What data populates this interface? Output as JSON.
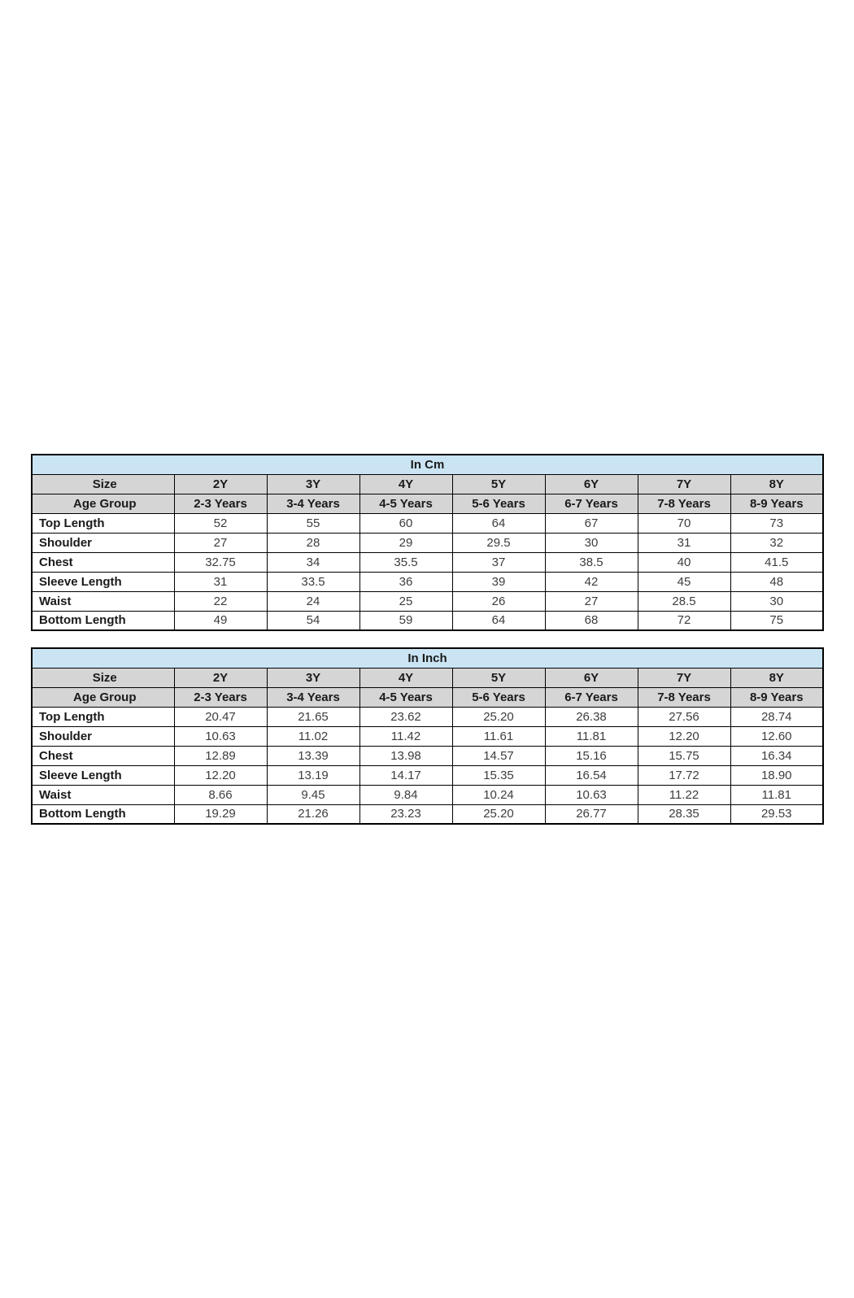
{
  "colors": {
    "title_bg": "#cae4f3",
    "header_bg": "#d5d5d5",
    "border": "#000000",
    "page_bg": "#ffffff"
  },
  "chart_data": [
    {
      "type": "table",
      "title": "In Cm",
      "size_label": "Size",
      "age_label": "Age Group",
      "sizes": [
        "2Y",
        "3Y",
        "4Y",
        "5Y",
        "6Y",
        "7Y",
        "8Y"
      ],
      "age_groups": [
        "2-3 Years",
        "3-4 Years",
        "4-5 Years",
        "5-6 Years",
        "6-7 Years",
        "7-8 Years",
        "8-9 Years"
      ],
      "rows": [
        {
          "label": "Top Length",
          "values": [
            "52",
            "55",
            "60",
            "64",
            "67",
            "70",
            "73"
          ]
        },
        {
          "label": "Shoulder",
          "values": [
            "27",
            "28",
            "29",
            "29.5",
            "30",
            "31",
            "32"
          ]
        },
        {
          "label": "Chest",
          "values": [
            "32.75",
            "34",
            "35.5",
            "37",
            "38.5",
            "40",
            "41.5"
          ]
        },
        {
          "label": "Sleeve Length",
          "values": [
            "31",
            "33.5",
            "36",
            "39",
            "42",
            "45",
            "48"
          ]
        },
        {
          "label": "Waist",
          "values": [
            "22",
            "24",
            "25",
            "26",
            "27",
            "28.5",
            "30"
          ]
        },
        {
          "label": "Bottom Length",
          "values": [
            "49",
            "54",
            "59",
            "64",
            "68",
            "72",
            "75"
          ]
        }
      ]
    },
    {
      "type": "table",
      "title": "In Inch",
      "size_label": "Size",
      "age_label": "Age Group",
      "sizes": [
        "2Y",
        "3Y",
        "4Y",
        "5Y",
        "6Y",
        "7Y",
        "8Y"
      ],
      "age_groups": [
        "2-3 Years",
        "3-4 Years",
        "4-5 Years",
        "5-6 Years",
        "6-7 Years",
        "7-8 Years",
        "8-9 Years"
      ],
      "rows": [
        {
          "label": "Top Length",
          "values": [
            "20.47",
            "21.65",
            "23.62",
            "25.20",
            "26.38",
            "27.56",
            "28.74"
          ]
        },
        {
          "label": "Shoulder",
          "values": [
            "10.63",
            "11.02",
            "11.42",
            "11.61",
            "11.81",
            "12.20",
            "12.60"
          ]
        },
        {
          "label": "Chest",
          "values": [
            "12.89",
            "13.39",
            "13.98",
            "14.57",
            "15.16",
            "15.75",
            "16.34"
          ]
        },
        {
          "label": "Sleeve Length",
          "values": [
            "12.20",
            "13.19",
            "14.17",
            "15.35",
            "16.54",
            "17.72",
            "18.90"
          ]
        },
        {
          "label": "Waist",
          "values": [
            "8.66",
            "9.45",
            "9.84",
            "10.24",
            "10.63",
            "11.22",
            "11.81"
          ]
        },
        {
          "label": "Bottom Length",
          "values": [
            "19.29",
            "21.26",
            "23.23",
            "25.20",
            "26.77",
            "28.35",
            "29.53"
          ]
        }
      ]
    }
  ]
}
